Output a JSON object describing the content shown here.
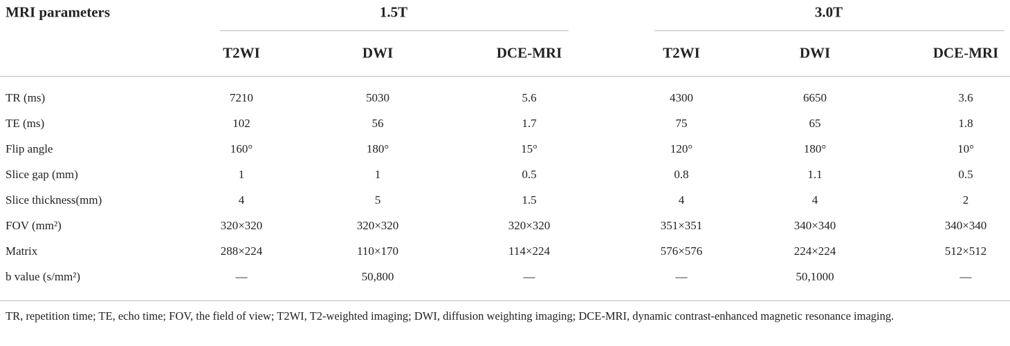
{
  "table": {
    "title": "MRI parameters",
    "groups": [
      "1.5T",
      "3.0T"
    ],
    "columns": [
      "T2WI",
      "DWI",
      "DCE-MRI",
      "T2WI",
      "DWI",
      "DCE-MRI"
    ],
    "rows": [
      [
        "TR (ms)",
        "7210",
        "5030",
        "5.6",
        "4300",
        "6650",
        "3.6"
      ],
      [
        "TE (ms)",
        "102",
        "56",
        "1.7",
        "75",
        "65",
        "1.8"
      ],
      [
        "Flip angle",
        "160°",
        "180°",
        "15°",
        "120°",
        "180°",
        "10°"
      ],
      [
        "Slice gap (mm)",
        "1",
        "1",
        "0.5",
        "0.8",
        "1.1",
        "0.5"
      ],
      [
        "Slice thickness(mm)",
        "4",
        "5",
        "1.5",
        "4",
        "4",
        "2"
      ],
      [
        "FOV (mm²)",
        "320×320",
        "320×320",
        "320×320",
        "351×351",
        "340×340",
        "340×340"
      ],
      [
        "Matrix",
        "288×224",
        "110×170",
        "114×224",
        "576×576",
        "224×224",
        "512×512"
      ],
      [
        "b value (s/mm²)",
        "—",
        "50,800",
        "—",
        "—",
        "50,1000",
        "—"
      ]
    ]
  },
  "footnote": "TR, repetition time; TE, echo time; FOV, the field of view; T2WI, T2-weighted imaging; DWI, diffusion weighting imaging; DCE-MRI, dynamic contrast-enhanced magnetic resonance imaging."
}
